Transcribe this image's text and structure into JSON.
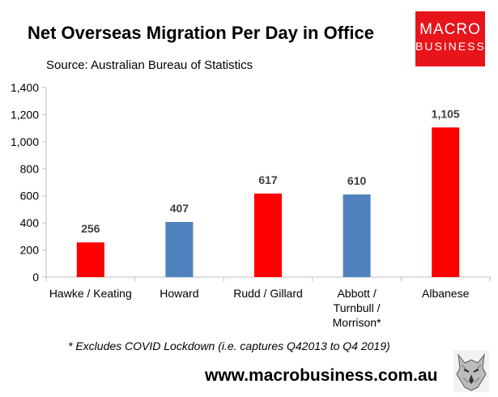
{
  "header": {
    "title": "Net Overseas Migration Per Day in Office",
    "source": "Source: Australian Bureau of Statistics"
  },
  "logo": {
    "line1": "MACRO",
    "line2": "BUSINESS",
    "color": "#e8141b"
  },
  "footer": {
    "footnote": "* Excludes COVID Lockdown (i.e. captures Q42013 to Q4 2019)",
    "website": "www.macrobusiness.com.au"
  },
  "chart_data": {
    "type": "bar",
    "categories": [
      [
        "Hawke / Keating"
      ],
      [
        "Howard"
      ],
      [
        "Rudd / Gillard"
      ],
      [
        "Abbott /",
        "Turnbull /",
        "Morrison*"
      ],
      [
        "Albanese"
      ]
    ],
    "values": [
      256,
      407,
      617,
      610,
      1105
    ],
    "data_labels": [
      "256",
      "407",
      "617",
      "610",
      "1,105"
    ],
    "colors": [
      "#ff0000",
      "#4f81bd",
      "#ff0000",
      "#4f81bd",
      "#ff0000"
    ],
    "ylim": [
      0,
      1400
    ],
    "yticks": [
      0,
      200,
      400,
      600,
      800,
      1000,
      1200,
      1400
    ],
    "ytick_labels": [
      "0",
      "200",
      "400",
      "600",
      "800",
      "1,000",
      "1,200",
      "1,400"
    ],
    "grid": false,
    "legend": "none"
  }
}
